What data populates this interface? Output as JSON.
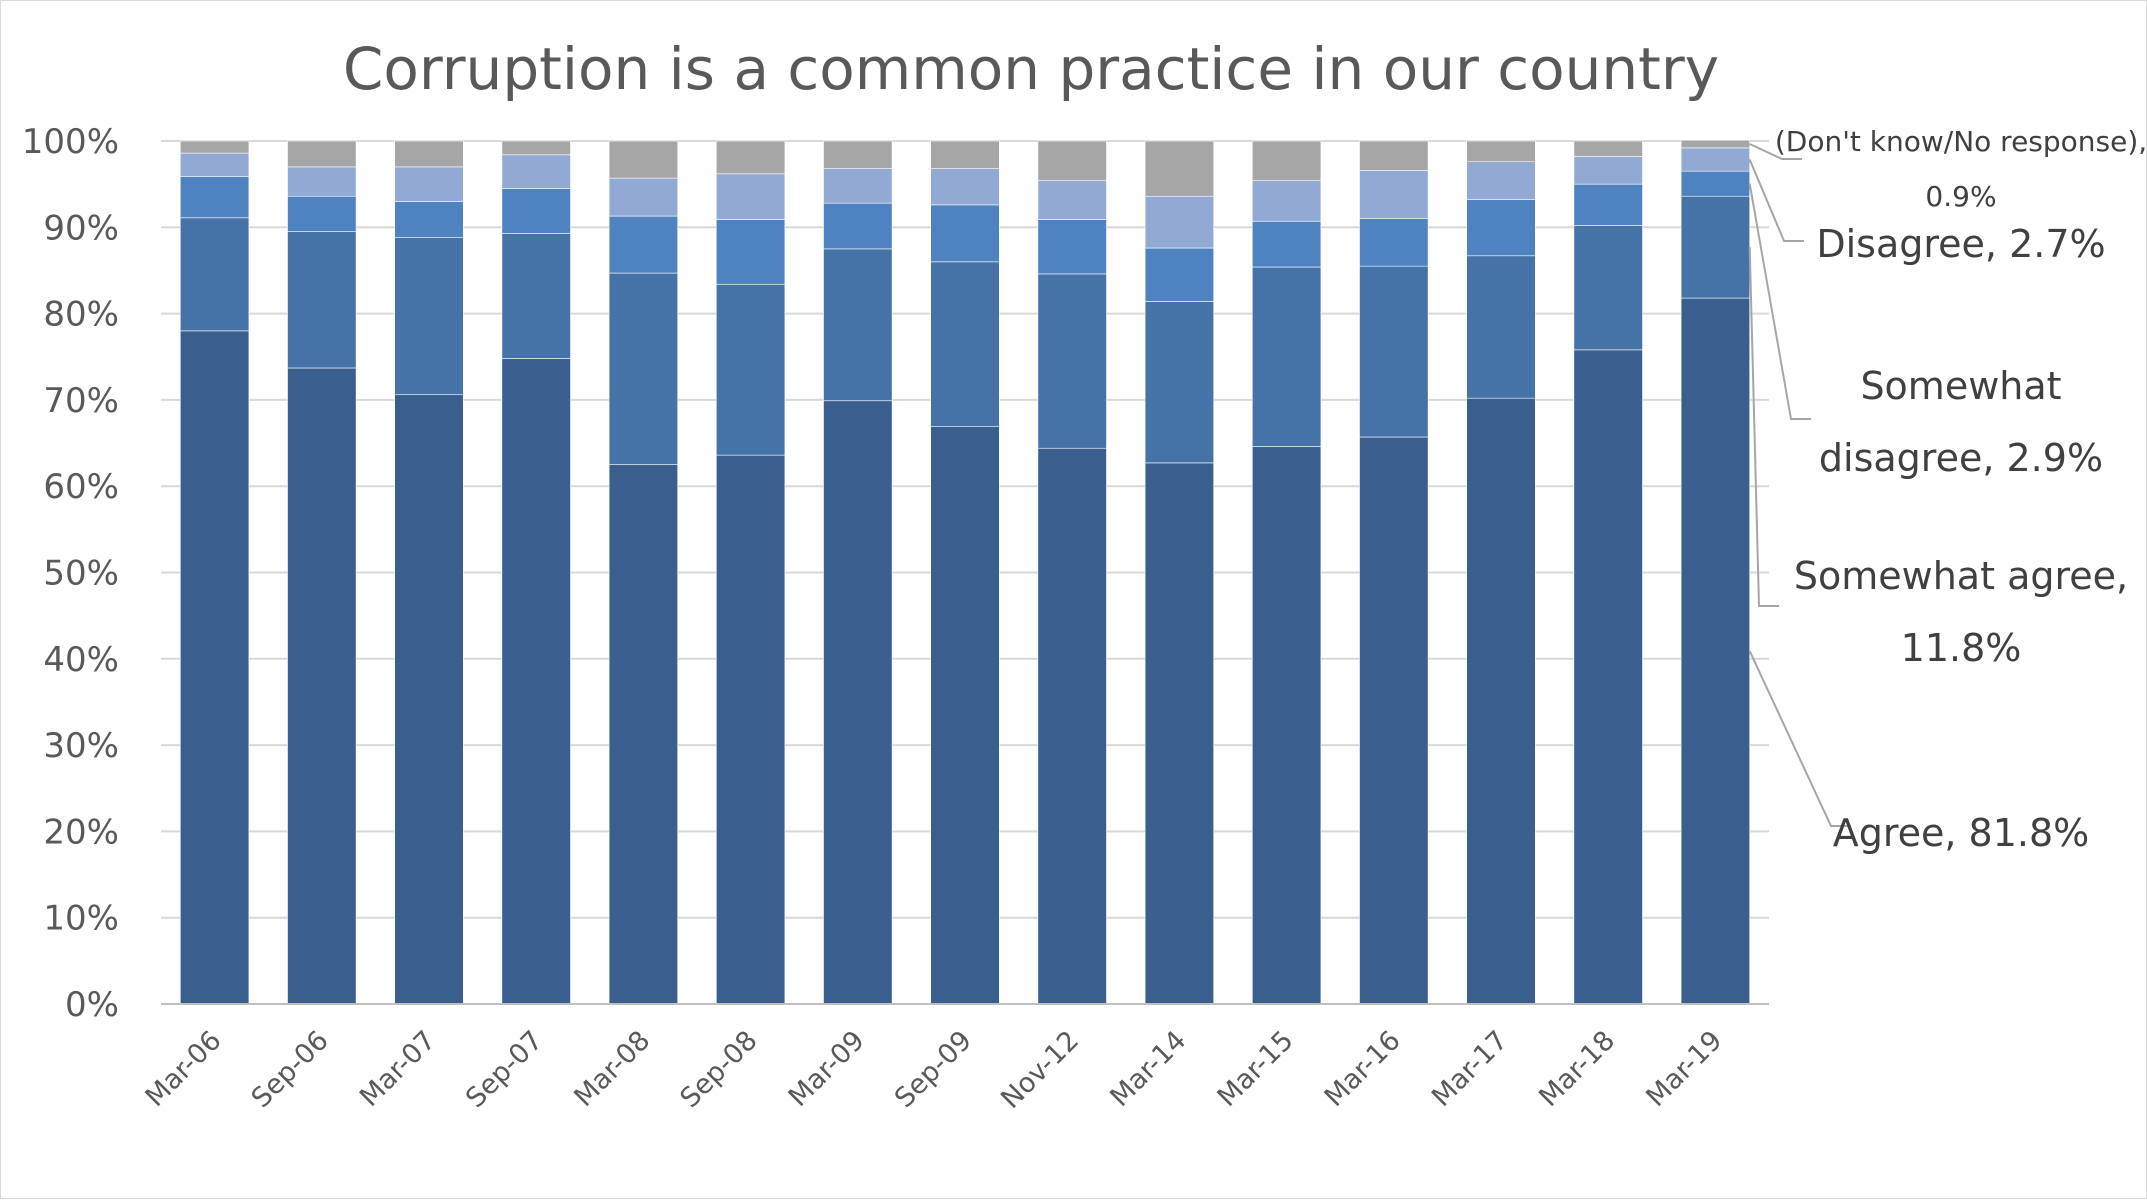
{
  "chart_data": {
    "type": "bar",
    "stacked": true,
    "title": "Corruption is a common practice in our country",
    "xlabel": "",
    "ylabel": "",
    "ylim": [
      0,
      100
    ],
    "y_ticks": [
      "0%",
      "10%",
      "20%",
      "30%",
      "40%",
      "50%",
      "60%",
      "70%",
      "80%",
      "90%",
      "100%"
    ],
    "grid": true,
    "legend": "none",
    "categories": [
      "Mar-06",
      "Sep-06",
      "Mar-07",
      "Sep-07",
      "Mar-08",
      "Sep-08",
      "Mar-09",
      "Sep-09",
      "Nov-12",
      "Mar-14",
      "Mar-15",
      "Mar-16",
      "Mar-17",
      "Mar-18",
      "Mar-19"
    ],
    "series": [
      {
        "name": "Agree",
        "color": "#3a5f8f",
        "values": [
          78.0,
          73.7,
          70.6,
          74.8,
          62.5,
          63.6,
          69.9,
          66.9,
          64.4,
          62.7,
          64.6,
          65.7,
          70.2,
          75.8,
          81.8
        ]
      },
      {
        "name": "Somewhat agree",
        "color": "#4673a7",
        "values": [
          13.1,
          15.8,
          18.2,
          14.5,
          22.2,
          19.8,
          17.6,
          19.1,
          20.2,
          18.7,
          20.8,
          19.8,
          16.5,
          14.4,
          11.8
        ]
      },
      {
        "name": "Somewhat disagree",
        "color": "#4f82c1",
        "values": [
          4.8,
          4.1,
          4.2,
          5.2,
          6.6,
          7.5,
          5.3,
          6.6,
          6.3,
          6.2,
          5.3,
          5.5,
          6.5,
          4.8,
          2.9
        ]
      },
      {
        "name": "Disagree",
        "color": "#92a9d3",
        "values": [
          2.7,
          3.4,
          4.0,
          3.9,
          4.4,
          5.3,
          4.0,
          4.2,
          4.5,
          6.0,
          4.7,
          5.6,
          4.4,
          3.2,
          2.7
        ]
      },
      {
        "name": "(Don't know/No response)",
        "color": "#a6a6a6",
        "values": [
          1.4,
          3.0,
          3.0,
          1.6,
          4.3,
          3.8,
          3.2,
          3.2,
          4.6,
          6.4,
          4.6,
          3.4,
          2.4,
          1.8,
          0.9
        ]
      }
    ],
    "annotations": [
      {
        "text": "(Don't know/No response),",
        "text2": "0.9%",
        "series": 4
      },
      {
        "text": "Disagree, 2.7%",
        "series": 3
      },
      {
        "text": "Somewhat",
        "text2": "disagree, 2.9%",
        "series": 2
      },
      {
        "text": "Somewhat agree,",
        "text2": "11.8%",
        "series": 1
      },
      {
        "text": "Agree, 81.8%",
        "series": 0
      }
    ]
  }
}
